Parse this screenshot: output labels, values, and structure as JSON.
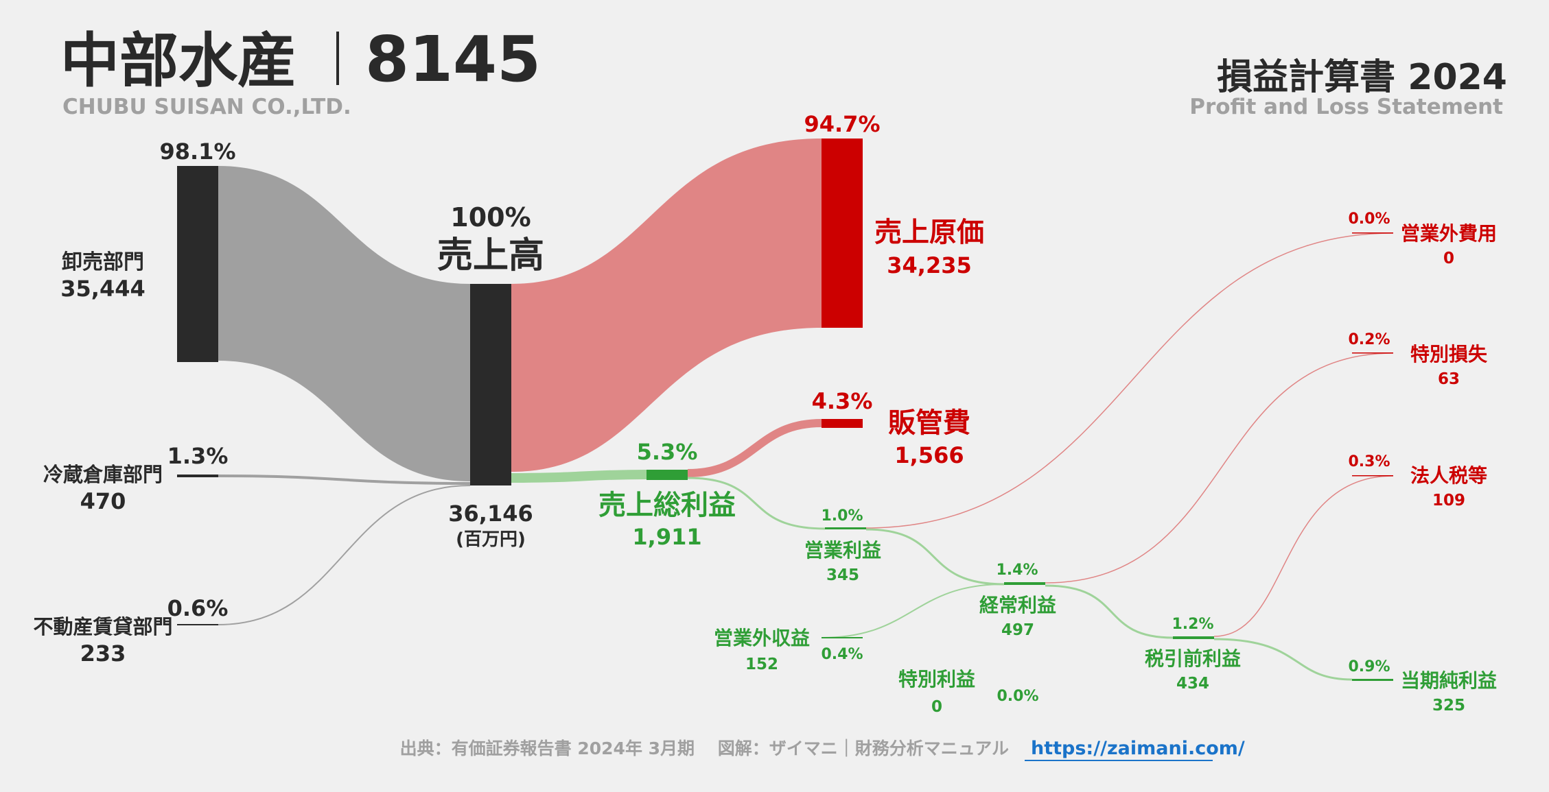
{
  "header": {
    "company": "中部水産",
    "code": "8145",
    "company_en": "CHUBU SUISAN CO.,LTD.",
    "statement": "損益計算書 2024",
    "statement_en": "Profit and Loss Statement"
  },
  "footer": {
    "source": "出典：有価証券報告書 2024年 3月期　 図解：ザイマニ｜財務分析マニュアル",
    "link": "https://zaimani.com/"
  },
  "chart_data": {
    "type": "sankey",
    "unit": "(百万円)",
    "nodes": [
      {
        "id": "wholesale",
        "name": "卸売部門",
        "value": 35444,
        "value_label": "35,444",
        "pct": "98.1%",
        "kind": "segment"
      },
      {
        "id": "cold",
        "name": "冷蔵倉庫部門",
        "value": 470,
        "value_label": "470",
        "pct": "1.3%",
        "kind": "segment"
      },
      {
        "id": "realestate",
        "name": "不動産賃貸部門",
        "value": 233,
        "value_label": "233",
        "pct": "0.6%",
        "kind": "segment"
      },
      {
        "id": "revenue",
        "name": "売上高",
        "value": 36146,
        "value_label": "36,146",
        "pct": "100%",
        "kind": "total"
      },
      {
        "id": "cogs",
        "name": "売上原価",
        "value": 34235,
        "value_label": "34,235",
        "pct": "94.7%",
        "kind": "cost"
      },
      {
        "id": "gross",
        "name": "売上総利益",
        "value": 1911,
        "value_label": "1,911",
        "pct": "5.3%",
        "kind": "profit"
      },
      {
        "id": "sga",
        "name": "販管費",
        "value": 1566,
        "value_label": "1,566",
        "pct": "4.3%",
        "kind": "cost"
      },
      {
        "id": "operating",
        "name": "営業利益",
        "value": 345,
        "value_label": "345",
        "pct": "1.0%",
        "kind": "profit"
      },
      {
        "id": "nonop_exp",
        "name": "営業外費用",
        "value": 0,
        "value_label": "0",
        "pct": "0.0%",
        "kind": "cost"
      },
      {
        "id": "nonop_inc",
        "name": "営業外収益",
        "value": 152,
        "value_label": "152",
        "pct": "0.4%",
        "kind": "profit"
      },
      {
        "id": "ordinary",
        "name": "経常利益",
        "value": 497,
        "value_label": "497",
        "pct": "1.4%",
        "kind": "profit"
      },
      {
        "id": "extra_loss",
        "name": "特別損失",
        "value": 63,
        "value_label": "63",
        "pct": "0.2%",
        "kind": "cost"
      },
      {
        "id": "extra_gain",
        "name": "特別利益",
        "value": 0,
        "value_label": "0",
        "pct": "0.0%",
        "kind": "profit"
      },
      {
        "id": "pretax",
        "name": "税引前利益",
        "value": 434,
        "value_label": "434",
        "pct": "1.2%",
        "kind": "profit"
      },
      {
        "id": "tax",
        "name": "法人税等",
        "value": 109,
        "value_label": "109",
        "pct": "0.3%",
        "kind": "cost"
      },
      {
        "id": "net",
        "name": "当期純利益",
        "value": 325,
        "value_label": "325",
        "pct": "0.9%",
        "kind": "profit"
      }
    ],
    "links": [
      {
        "source": "wholesale",
        "target": "revenue",
        "value": 35444,
        "color": "#a0a0a0"
      },
      {
        "source": "cold",
        "target": "revenue",
        "value": 470,
        "color": "#a0a0a0"
      },
      {
        "source": "realestate",
        "target": "revenue",
        "value": 233,
        "color": "#a0a0a0"
      },
      {
        "source": "revenue",
        "target": "cogs",
        "value": 34235,
        "color": "#e08585"
      },
      {
        "source": "revenue",
        "target": "gross",
        "value": 1911,
        "color": "#9fd39a"
      },
      {
        "source": "gross",
        "target": "sga",
        "value": 1566,
        "color": "#e08585"
      },
      {
        "source": "gross",
        "target": "operating",
        "value": 345,
        "color": "#9fd39a"
      },
      {
        "source": "operating",
        "target": "nonop_exp",
        "value": 0,
        "color": "#e08585"
      },
      {
        "source": "operating",
        "target": "ordinary",
        "value": 345,
        "color": "#9fd39a"
      },
      {
        "source": "nonop_inc",
        "target": "ordinary",
        "value": 152,
        "color": "#9fd39a"
      },
      {
        "source": "ordinary",
        "target": "extra_loss",
        "value": 63,
        "color": "#e08585"
      },
      {
        "source": "ordinary",
        "target": "pretax",
        "value": 434,
        "color": "#9fd39a"
      },
      {
        "source": "pretax",
        "target": "tax",
        "value": 109,
        "color": "#e08585"
      },
      {
        "source": "pretax",
        "target": "net",
        "value": 325,
        "color": "#9fd39a"
      }
    ],
    "colors": {
      "segment": "#2a2a2a",
      "cost": "#cc0000",
      "profit": "#2f9e36",
      "inflow": "#a0a0a0"
    }
  }
}
